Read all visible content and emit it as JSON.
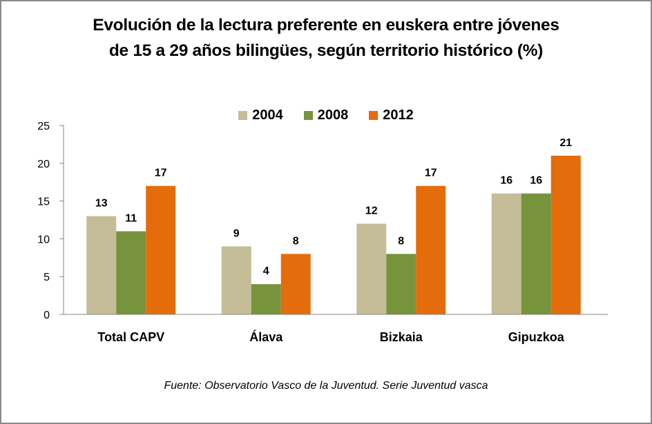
{
  "chart_data": {
    "type": "bar",
    "title_lines": [
      "Evolución de la lectura preferente en euskera entre jóvenes",
      "de 15 a 29 años bilingües, según territorio histórico (%)"
    ],
    "categories": [
      "Total CAPV",
      "Álava",
      "Bizkaia",
      "Gipuzkoa"
    ],
    "series": [
      {
        "name": "2004",
        "color": "#C4BD97",
        "values": [
          13,
          9,
          12,
          16
        ]
      },
      {
        "name": "2008",
        "color": "#77933C",
        "values": [
          11,
          4,
          8,
          16
        ]
      },
      {
        "name": "2012",
        "color": "#E46C0A",
        "values": [
          17,
          8,
          17,
          21
        ]
      }
    ],
    "xlabel": "",
    "ylabel": "",
    "ylim": [
      0,
      25
    ],
    "yticks": [
      0,
      5,
      10,
      15,
      20,
      25
    ],
    "grid": false,
    "legend_position": "top-center",
    "data_labels": true,
    "source": "Fuente:  Observatorio Vasco de la Juventud. Serie Juventud vasca"
  }
}
